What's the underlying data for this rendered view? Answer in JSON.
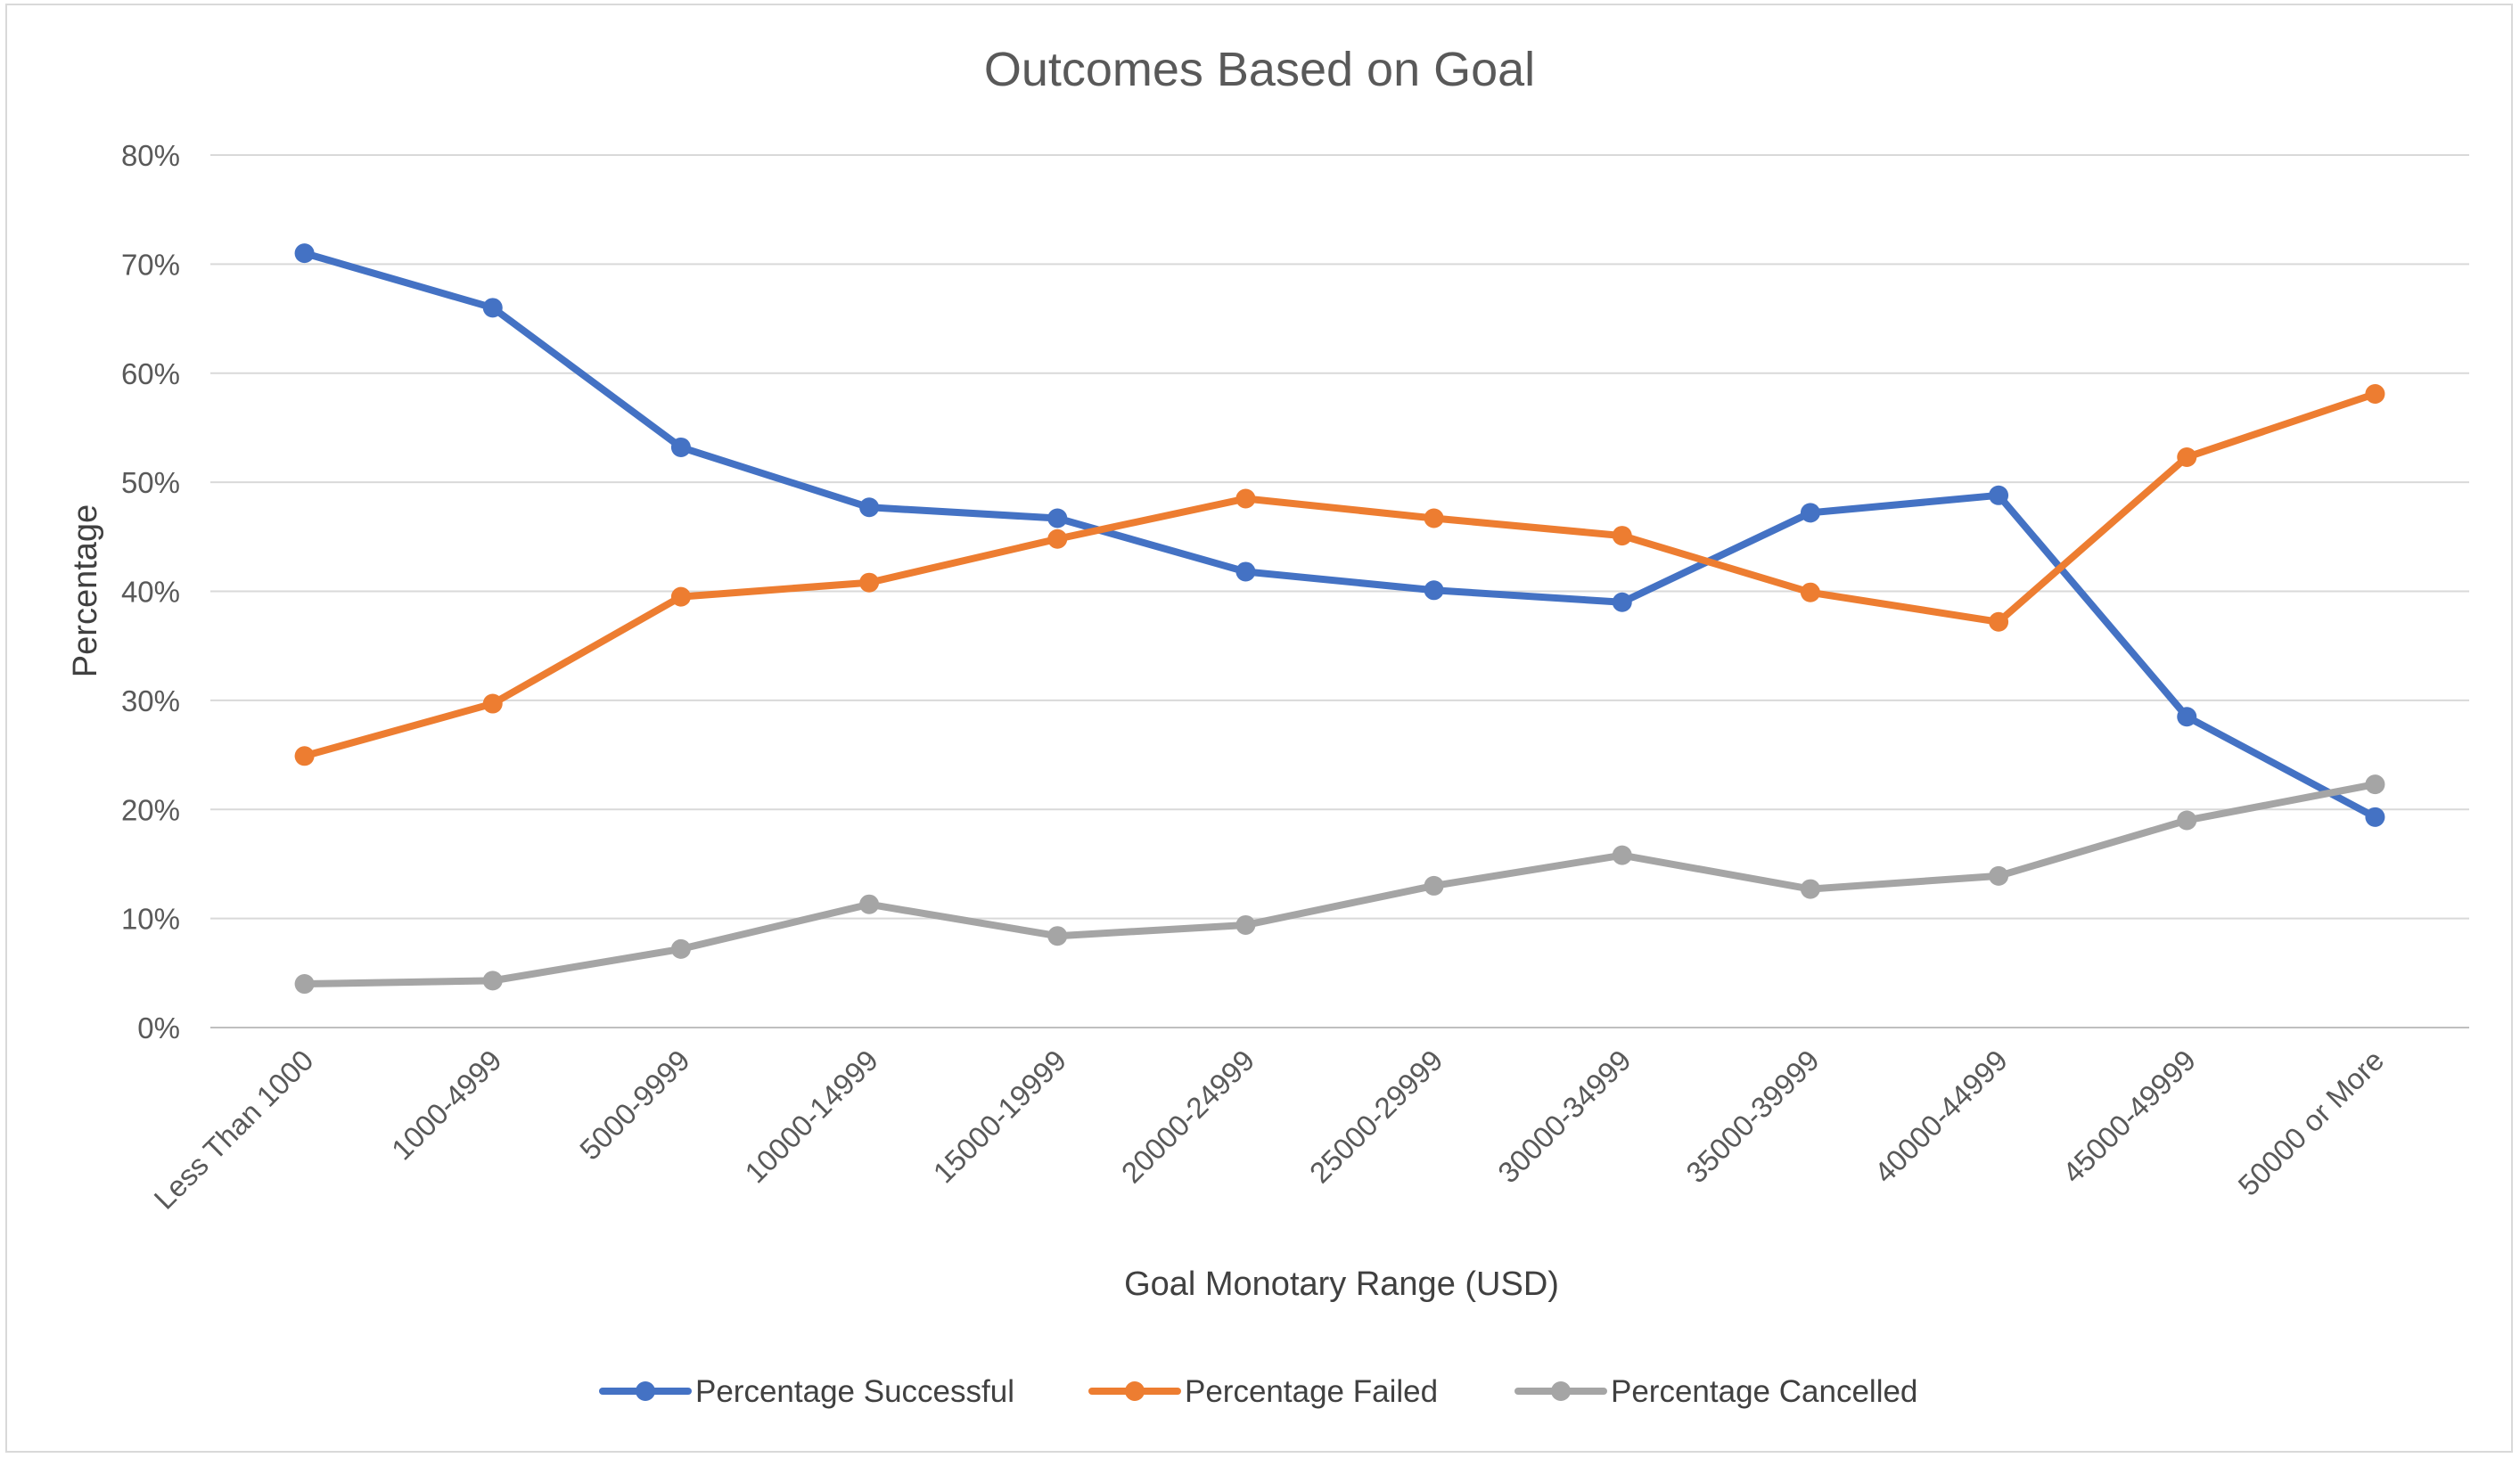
{
  "chart_data": {
    "type": "line",
    "title": "Outcomes Based on Goal",
    "xlabel": "Goal Monotary Range (USD)",
    "ylabel": "Percentage",
    "ylim": [
      0,
      80
    ],
    "y_ticks": [
      "0%",
      "10%",
      "20%",
      "30%",
      "40%",
      "50%",
      "60%",
      "70%",
      "80%"
    ],
    "grid": "horizontal",
    "legend_position": "bottom",
    "categories": [
      "Less Than 1000",
      "1000-4999",
      "5000-9999",
      "10000-14999",
      "15000-19999",
      "20000-24999",
      "25000-29999",
      "30000-34999",
      "35000-39999",
      "40000-44999",
      "45000-49999",
      "50000 or More"
    ],
    "series": [
      {
        "name": "Percentage Successful",
        "color": "#4472c4",
        "values": [
          71,
          66,
          53.2,
          47.7,
          46.7,
          41.8,
          40.1,
          39,
          47.2,
          48.8,
          28.5,
          19.3
        ]
      },
      {
        "name": "Percentage Failed",
        "color": "#ed7d31",
        "values": [
          24.9,
          29.7,
          39.5,
          40.8,
          44.8,
          48.5,
          46.7,
          45.1,
          39.9,
          37.2,
          52.3,
          58.1
        ]
      },
      {
        "name": "Percentage Cancelled",
        "color": "#a5a5a5",
        "values": [
          4,
          4.3,
          7.2,
          11.3,
          8.4,
          9.4,
          13,
          15.8,
          12.7,
          13.9,
          19,
          22.3
        ]
      }
    ]
  }
}
